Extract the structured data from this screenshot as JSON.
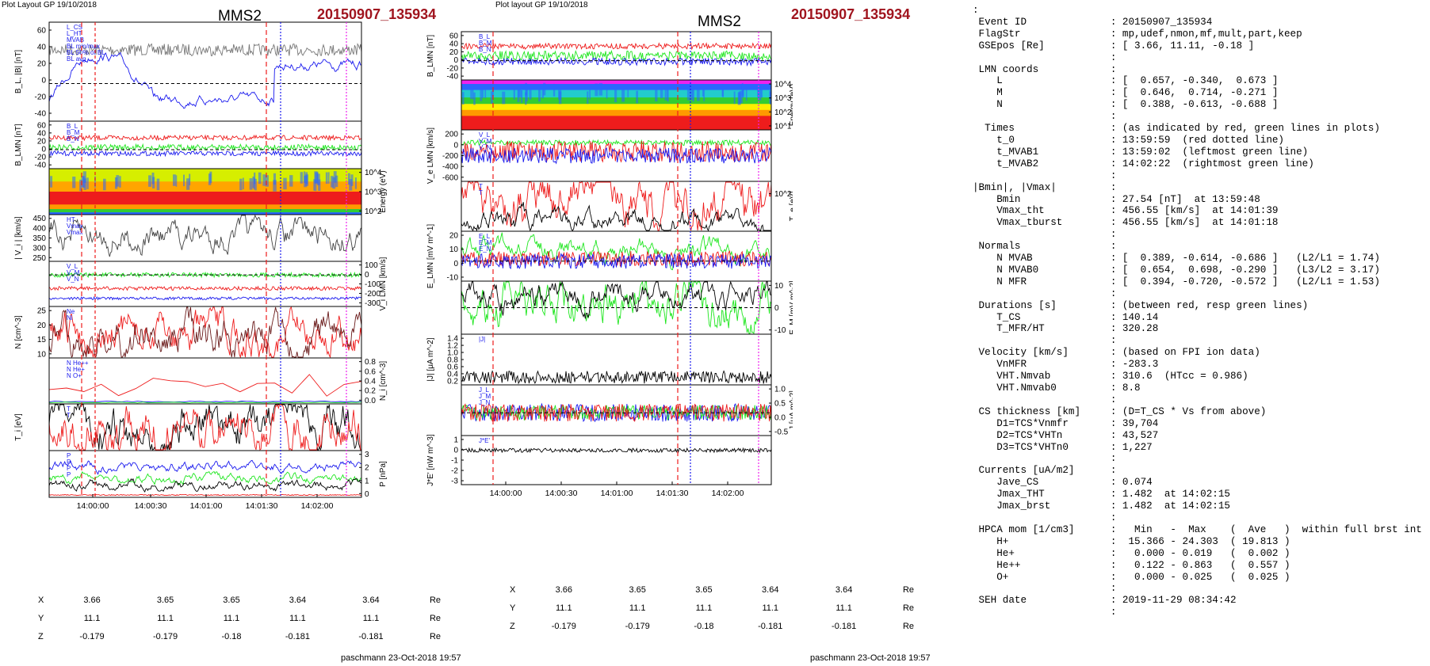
{
  "left": {
    "layout_label": "Plot Layout GP 19/10/2018",
    "spacecraft": "MMS2",
    "event": "20150907_135934",
    "footer": "paschmann 23-Oct-2018 19:57",
    "time_ticks": [
      "14:00:00",
      "14:00:30",
      "14:01:00",
      "14:01:30",
      "14:02:00"
    ],
    "coords": [
      {
        "label": "X",
        "values": [
          "3.66",
          "3.65",
          "3.65",
          "3.64",
          "3.64"
        ],
        "unit": "Re"
      },
      {
        "label": "Y",
        "values": [
          "11.1",
          "11.1",
          "11.1",
          "11.1",
          "11.1"
        ],
        "unit": "Re"
      },
      {
        "label": "Z",
        "values": [
          "-0.179",
          "-0.179",
          "-0.18",
          "-0.181",
          "-0.181"
        ],
        "unit": "Re"
      }
    ]
  },
  "right": {
    "layout_label": "Plot layout GP 19/10/2018",
    "spacecraft": "MMS2",
    "event": "20150907_135934",
    "footer": "paschmann 23-Oct-2018 19:57",
    "time_ticks": [
      "14:00:00",
      "14:00:30",
      "14:01:00",
      "14:01:30",
      "14:02:00"
    ],
    "coords": [
      {
        "label": "X",
        "values": [
          "3.66",
          "3.65",
          "3.65",
          "3.64",
          "3.64"
        ],
        "unit": "Re"
      },
      {
        "label": "Y",
        "values": [
          "11.1",
          "11.1",
          "11.1",
          "11.1",
          "11.1"
        ],
        "unit": "Re"
      },
      {
        "label": "Z",
        "values": [
          "-0.179",
          "-0.179",
          "-0.18",
          "-0.181",
          "-0.181"
        ],
        "unit": "Re"
      }
    ]
  },
  "colors": {
    "event_title": "#a0141e",
    "red": "#ee1c1c",
    "green": "#1ee61e",
    "blue": "#1a1aee",
    "magenta": "#ee22ee",
    "grey": "#777777"
  },
  "chart_data": [
    {
      "type": "line",
      "figure": "left",
      "panels": [
        {
          "ylabel": "B_L, |B| [nT]",
          "yticks": [
            "60",
            "40",
            "20",
            "0",
            "-20",
            "-40"
          ],
          "legend": [
            "L_CS",
            "L_HT",
            "MVAB",
            "BL min/max",
            "BL 50% of BL",
            "BL avg"
          ]
        },
        {
          "ylabel": "B_LMN [nT]",
          "yticks": [
            "60",
            "40",
            "20",
            "0",
            "-20",
            "-40"
          ],
          "legend": [
            "B_L",
            "B_M",
            "B_N"
          ]
        },
        {
          "type": "heatmap",
          "ylabel": "Energy (eV)",
          "yticks": [
            "10^4",
            "10^3",
            "10^2"
          ]
        },
        {
          "ylabel": "| V_i | [km/s]",
          "yticks": [
            "450",
            "400",
            "350",
            "300",
            "250"
          ],
          "legend": [
            "HT",
            "Vmax",
            "Vmax"
          ]
        },
        {
          "ylabel": "V_i LMN [km/s]",
          "yticks": [
            "100",
            "0",
            "-100",
            "-200",
            "-300"
          ],
          "legend": [
            "V_L",
            "V_M",
            "V_N"
          ]
        },
        {
          "ylabel": "N [cm^-3]",
          "yticks": [
            "25",
            "20",
            "15",
            "10"
          ],
          "legend": [
            "Ne",
            "Ni"
          ]
        },
        {
          "ylabel": "N_i [cm^-3]",
          "yticks": [
            "0.8",
            "0.6",
            "0.4",
            "0.2",
            "0.0"
          ],
          "legend": [
            "N  He++",
            "N  He+",
            "N  O+"
          ]
        },
        {
          "ylabel": "T_i [eV]",
          "yticks": [],
          "legend": [
            "T",
            "T"
          ]
        },
        {
          "ylabel": "P [nPa]",
          "yticks": [
            "3",
            "2",
            "1",
            "0"
          ],
          "legend": [
            "P",
            "P",
            "P",
            "P"
          ]
        }
      ],
      "vertical_lines": {
        "t_0": "13:59:59",
        "t_MVAB1": "13:59:02",
        "t_MVAB2": "14:02:22"
      }
    },
    {
      "type": "line",
      "figure": "right",
      "panels": [
        {
          "ylabel": "B_LMN [nT]",
          "yticks": [
            "60",
            "40",
            "20",
            "0",
            "-20",
            "-40"
          ],
          "legend": [
            "B_L",
            "B_M",
            "B_N"
          ]
        },
        {
          "type": "heatmap",
          "ylabel": "Energy (eV)",
          "yticks": [
            "10^4",
            "10^3",
            "10^2",
            "10^1"
          ]
        },
        {
          "ylabel": "V_e LMN [km/s]",
          "yticks": [
            "200",
            "0",
            "-200",
            "-400",
            "-600"
          ],
          "legend": [
            "V_L",
            "V_M",
            "V_N"
          ]
        },
        {
          "ylabel": "T_e [eV]",
          "yticks": [
            "10^2"
          ],
          "legend": [
            "T",
            "T"
          ]
        },
        {
          "ylabel": "E_LMN [mV m^-1]",
          "yticks": [
            "20",
            "10",
            "0",
            "-10"
          ],
          "legend": [
            "E_L",
            "E_M",
            "E_N"
          ]
        },
        {
          "ylabel": "E_M [mV m^-2]",
          "yticks": [
            "10",
            "0",
            "-10"
          ]
        },
        {
          "ylabel": "|J| [μA m^-2]",
          "yticks": [
            "1.4",
            "1.2",
            "1.0",
            "0.8",
            "0.6",
            "0.4",
            "0.2"
          ],
          "legend": [
            "|J|"
          ]
        },
        {
          "ylabel": "J [μA m^-2]",
          "yticks": [
            "1.0",
            "0.5",
            "0.0",
            "-0.5"
          ],
          "legend": [
            "J_L",
            "J_M",
            "J_N"
          ]
        },
        {
          "ylabel": "J*E' [nW m^-3]",
          "yticks": [
            "1",
            "0",
            "-1",
            "-2",
            "-3"
          ],
          "legend": [
            "J*E'"
          ]
        }
      ]
    }
  ],
  "info_lines": [
    ":",
    " Event ID              : 20150907_135934",
    " FlagStr               : mp,udef,nmon,mf,mult,part,keep",
    " GSEpos [Re]           : [ 3.66, 11.11, -0.18 ]",
    "                       :",
    " LMN coords            :",
    "    L                  : [  0.657, -0.340,  0.673 ]",
    "    M                  : [  0.646,  0.714, -0.271 ]",
    "    N                  : [  0.388, -0.613, -0.688 ]",
    "                       :",
    "  Times                : (as indicated by red, green lines in plots)",
    "    t_0                : 13:59:59  (red dotted line)",
    "    t_MVAB1            : 13:59:02  (leftmost green line)",
    "    t_MVAB2            : 14:02:22  (rightmost green line)",
    "                       :",
    "|Bmin|, |Vmax|         :",
    "    Bmin               : 27.54 [nT]  at 13:59:48",
    "    Vmax_tht           : 456.55 [km/s]  at 14:01:39",
    "    Vmax_tburst        : 456.55 [km/s]  at 14:01:18",
    "                       :",
    " Normals               :",
    "    N MVAB             : [  0.389, -0.614, -0.686 ]   (L2/L1 = 1.74)",
    "    N MVAB0            : [  0.654,  0.698, -0.290 ]   (L3/L2 = 3.17)",
    "    N MFR              : [  0.394, -0.720, -0.572 ]   (L2/L1 = 1.53)",
    "                       :",
    " Durations [s]         : (between red, resp green lines)",
    "    T_CS               : 140.14",
    "    T_MFR/HT           : 320.28",
    "                       :",
    " Velocity [km/s]       : (based on FPI ion data)",
    "    VnMFR              : -283.3",
    "    VHT.Nmvab          : 310.6  (HTcc = 0.986)",
    "    VHT.Nmvab0         : 8.8",
    "                       :",
    " CS thickness [km]     : (D=T_CS * Vs from above)",
    "    D1=TCS*Vnmfr       : 39,704",
    "    D2=TCS*VHTn        : 43,527",
    "    D3=TCS*VHTn0       : 1,227",
    "                       :",
    " Currents [uA/m2]      :",
    "    Jave_CS            : 0.074",
    "    Jmax_THT           : 1.482  at 14:02:15",
    "    Jmax_brst          : 1.482  at 14:02:15",
    "                       :",
    " HPCA mom [1/cm3]      :   Min   -  Max    (  Ave   )  within full brst int",
    "    H+                 :  15.366 - 24.303  ( 19.813 )",
    "    He+                :   0.000 - 0.019   (  0.002 )",
    "    He++               :   0.122 - 0.863   (  0.557 )",
    "    O+                 :   0.000 - 0.025   (  0.025 )",
    "                       :",
    " SEH date              : 2019-11-29 08:34:42",
    "                       :"
  ]
}
